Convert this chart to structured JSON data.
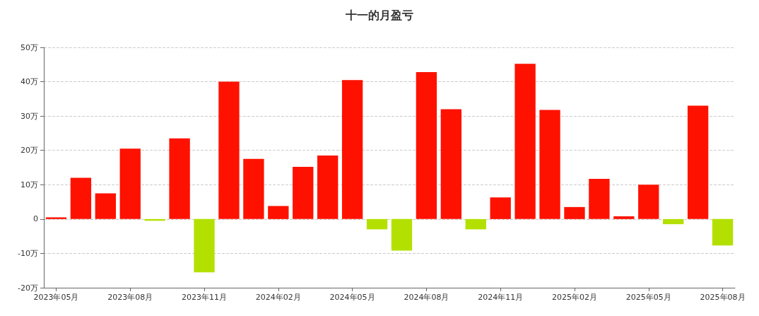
{
  "chart_data": {
    "type": "bar",
    "title": "十一的月盈亏",
    "categories": [
      "2023年05月",
      null,
      null,
      "2023年08月",
      null,
      null,
      "2023年11月",
      null,
      null,
      "2024年02月",
      null,
      null,
      "2024年05月",
      null,
      null,
      "2024年08月",
      null,
      null,
      "2024年11月",
      null,
      null,
      "2025年02月",
      null,
      null,
      "2025年05月",
      null,
      null,
      "2025年08月"
    ],
    "values": [
      0.5,
      12,
      7.5,
      20.5,
      -0.5,
      23.5,
      -15.5,
      40,
      17.5,
      3.8,
      15.2,
      18.5,
      40.5,
      -3,
      -9.2,
      42.8,
      32,
      -3,
      6.3,
      45.2,
      31.8,
      3.5,
      11.7,
      0.8,
      10,
      -1.5,
      33,
      -7.7
    ],
    "colors": [
      "#ff1100",
      "#ff1100",
      "#ff1100",
      "#ff1100",
      "#b3e000",
      "#ff1100",
      "#b3e000",
      "#ff1100",
      "#ff1100",
      "#ff1100",
      "#ff1100",
      "#ff1100",
      "#ff1100",
      "#b3e000",
      "#b3e000",
      "#ff1100",
      "#ff1100",
      "#b3e000",
      "#ff1100",
      "#ff1100",
      "#ff1100",
      "#ff1100",
      "#ff1100",
      "#ff1100",
      "#ff1100",
      "#b3e000",
      "#ff1100",
      "#b3e000"
    ],
    "ylim": [
      -20,
      50
    ],
    "yticks": [
      {
        "value": -20,
        "label": "-20万"
      },
      {
        "value": -10,
        "label": "-10万"
      },
      {
        "value": 0,
        "label": "0"
      },
      {
        "value": 10,
        "label": "10万"
      },
      {
        "value": 20,
        "label": "20万"
      },
      {
        "value": 30,
        "label": "30万"
      },
      {
        "value": 40,
        "label": "40万"
      },
      {
        "value": 50,
        "label": "50万"
      }
    ],
    "grid": "y"
  }
}
